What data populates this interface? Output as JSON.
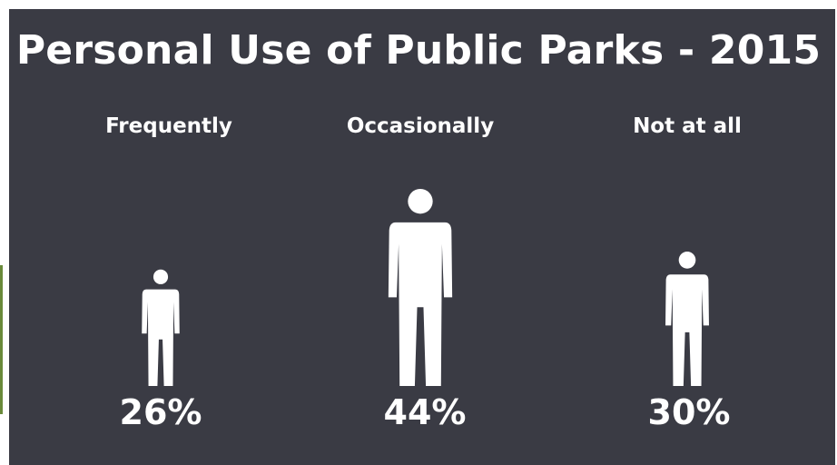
{
  "chart_data": {
    "type": "pictograph",
    "title": "Personal Use of Public Parks - 2015",
    "categories": [
      "Frequently",
      "Occasionally",
      "Not at all"
    ],
    "values": [
      26,
      44,
      30
    ],
    "value_labels": [
      "26%",
      "44%",
      "30%"
    ],
    "unit": "%",
    "colors": {
      "background": "#3a3b44",
      "figure": "#ffffff",
      "text": "#ffffff"
    }
  }
}
